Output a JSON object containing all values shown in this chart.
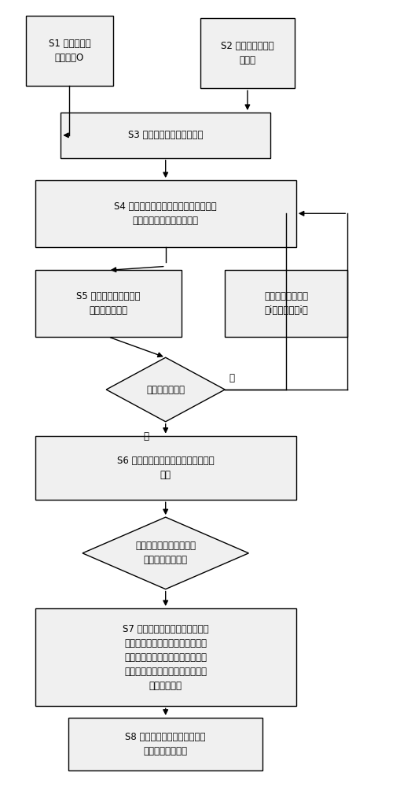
{
  "bg_color": "#ffffff",
  "box_fill": "#f0f0f0",
  "box_edge": "#000000",
  "font_size": 8.5,
  "positions": {
    "S1": [
      0.17,
      0.938,
      0.22,
      0.09
    ],
    "S2": [
      0.62,
      0.935,
      0.24,
      0.09
    ],
    "S3": [
      0.413,
      0.83,
      0.53,
      0.058
    ],
    "S4": [
      0.413,
      0.73,
      0.66,
      0.085
    ],
    "S5": [
      0.268,
      0.615,
      0.37,
      0.085
    ],
    "SR": [
      0.718,
      0.615,
      0.31,
      0.085
    ],
    "DIA1": [
      0.413,
      0.505,
      0.3,
      0.082
    ],
    "S6": [
      0.413,
      0.405,
      0.66,
      0.082
    ],
    "DIA2": [
      0.413,
      0.296,
      0.42,
      0.092
    ],
    "S7": [
      0.413,
      0.163,
      0.66,
      0.125
    ],
    "S8": [
      0.413,
      0.052,
      0.49,
      0.068
    ]
  },
  "texts": {
    "S1": "S1 假定可无限\n分裂质子O",
    "S2": "S2 构建矿井通风几\n何网络",
    "S3": "S3 构建邻接矩阵及关系矩阵",
    "S4": "S4 将无限分裂质子放置于需要判定的有\n向边，并沿有向边方向移动",
    "S5": "S5 搜索邻接矩阵获得后\n继节点及边集合",
    "SR": "质子根据后继边条\n数i分裂分裂为i个",
    "DIA1": "是否具有后继边",
    "S6": "S6 计算得出该工作面质子所有移动路\n径图",
    "DIA2": "判定另一工作面所在抽象\n边，是否在集合中",
    "S7": "S7 得出计算结果，若在集合中，\n则表明质子经过了判定工作面几何\n边（工作面存在串联通风），反之\n则没有经过（两个工作面之间不存\n在串联通风）",
    "S8": "S8 利用溯源法计算出两串联通\n风工作面流经路径"
  },
  "label_no": "否",
  "label_yes": "是"
}
